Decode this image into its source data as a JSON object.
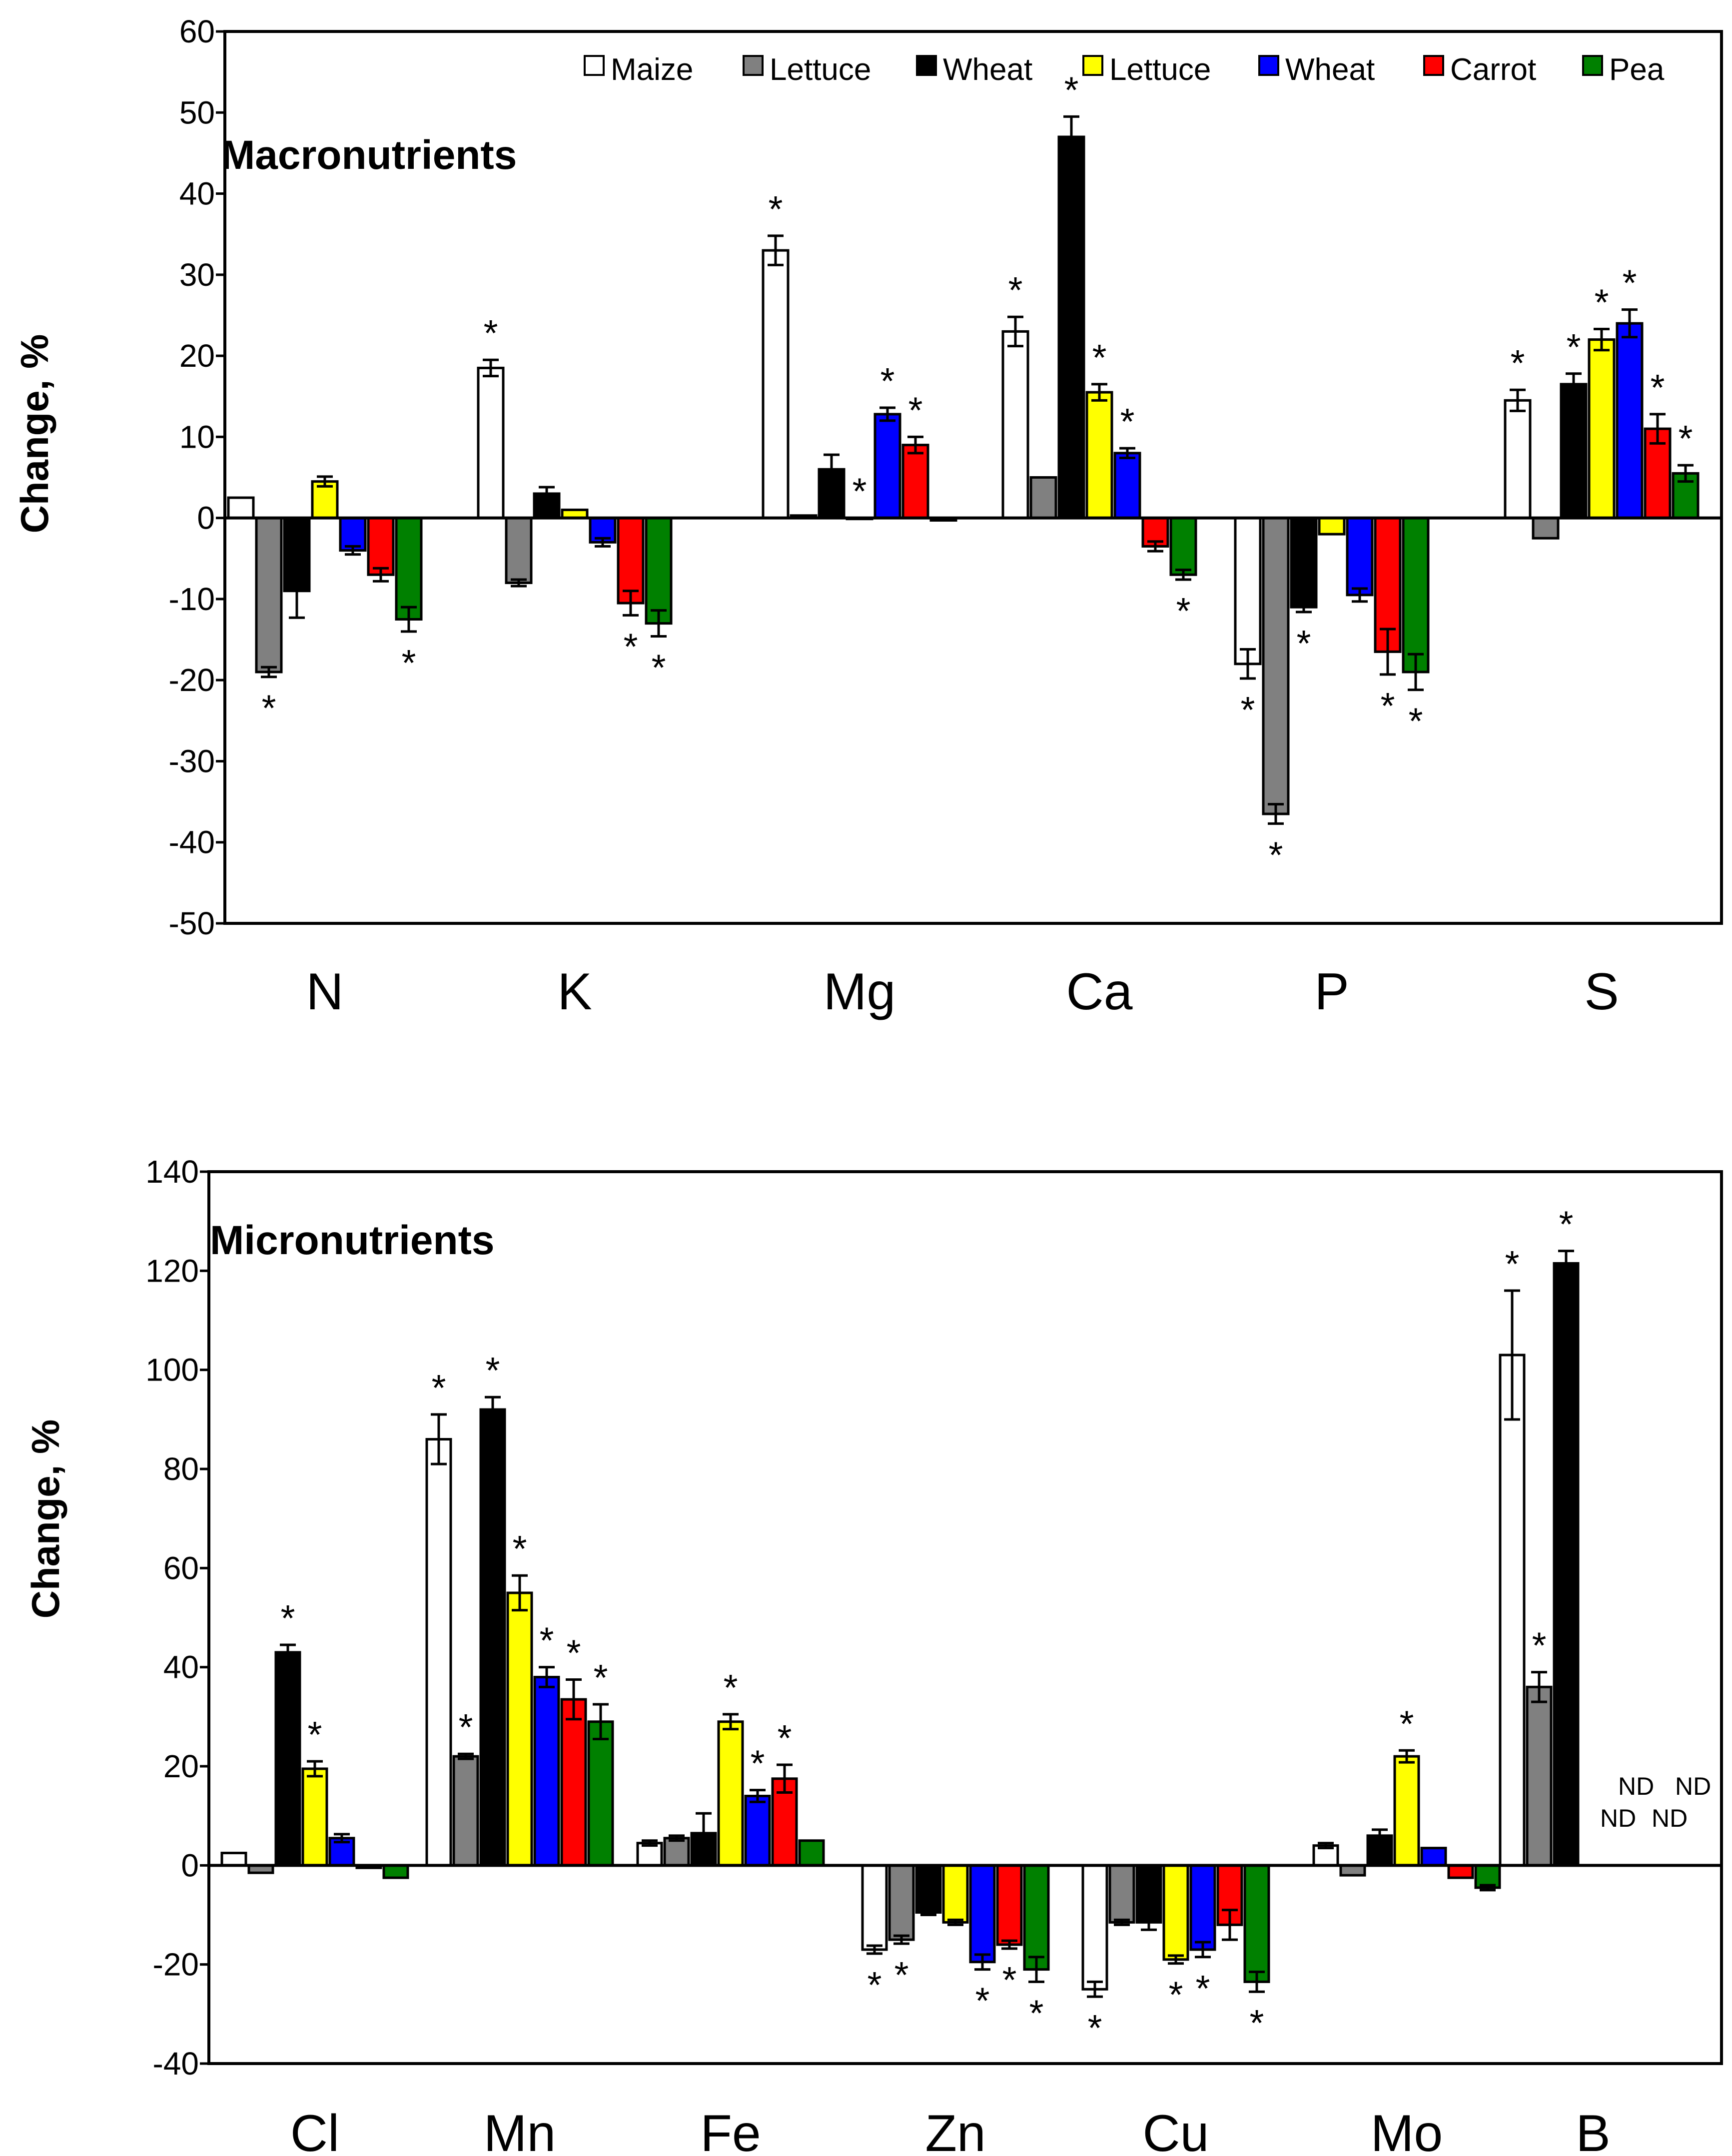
{
  "colors": {
    "Maize": "#ffffff",
    "Lettuce1": "#808080",
    "Wheat1": "#000000",
    "Lettuce2": "#ffff00",
    "Wheat2": "#0000ff",
    "Carrot": "#ff0000",
    "Pea": "#008000"
  },
  "legend": [
    "Maize",
    "Lettuce",
    "Wheat",
    "Lettuce",
    "Wheat",
    "Carrot",
    "Pea"
  ],
  "chart_data": [
    {
      "type": "bar",
      "title": "Macronutrients",
      "ylabel": "Change, %",
      "xlabel": "",
      "ylim": [
        -50,
        60
      ],
      "yticks": [
        -50,
        -40,
        -30,
        -20,
        -10,
        0,
        10,
        20,
        30,
        40,
        50,
        60
      ],
      "categories": [
        "N",
        "K",
        "Mg",
        "Ca",
        "P",
        "S"
      ],
      "series": [
        {
          "name": "Maize",
          "values": [
            2.5,
            18.5,
            33,
            23,
            -18,
            14.5
          ],
          "errors": [
            0,
            1,
            1.8,
            1.8,
            1.8,
            1.3
          ],
          "sig": [
            false,
            true,
            true,
            true,
            true,
            true
          ]
        },
        {
          "name": "Lettuce",
          "values": [
            -19,
            -8,
            0.3,
            5,
            -36.5,
            -2.5
          ],
          "errors": [
            0.6,
            0.4,
            0,
            0,
            1.2,
            0
          ],
          "sig": [
            true,
            false,
            false,
            false,
            true,
            false
          ]
        },
        {
          "name": "Wheat",
          "values": [
            -9,
            3,
            6,
            47,
            -11,
            16.5
          ],
          "errors": [
            3.3,
            0.8,
            1.8,
            2.5,
            0.6,
            1.3
          ],
          "sig": [
            false,
            false,
            false,
            true,
            true,
            true
          ]
        },
        {
          "name": "Lettuce",
          "values": [
            4.5,
            1,
            0,
            15.5,
            -2,
            22
          ],
          "errors": [
            0.6,
            0,
            0,
            1,
            0,
            1.3
          ],
          "sig": [
            false,
            false,
            true,
            true,
            false,
            true
          ]
        },
        {
          "name": "Wheat",
          "values": [
            -4,
            -3,
            12.8,
            8,
            -9.5,
            24
          ],
          "errors": [
            0.5,
            0.5,
            0.8,
            0.6,
            0.8,
            1.7
          ],
          "sig": [
            false,
            false,
            true,
            true,
            false,
            true
          ]
        },
        {
          "name": "Carrot",
          "values": [
            -7,
            -10.5,
            9,
            -3.5,
            -16.5,
            11
          ],
          "errors": [
            0.8,
            1.5,
            1,
            0.6,
            2.8,
            1.8
          ],
          "sig": [
            false,
            true,
            true,
            false,
            true,
            true
          ]
        },
        {
          "name": "Pea",
          "values": [
            -12.5,
            -13,
            -0.3,
            -7,
            -19,
            5.5
          ],
          "errors": [
            1.5,
            1.6,
            0,
            0.6,
            2.2,
            1
          ],
          "sig": [
            true,
            true,
            false,
            true,
            true,
            true
          ]
        }
      ]
    },
    {
      "type": "bar",
      "title": "Micronutrients",
      "ylabel": "Change, %",
      "xlabel": "",
      "ylim": [
        -40,
        140
      ],
      "yticks": [
        -40,
        -20,
        0,
        20,
        40,
        60,
        80,
        100,
        120,
        140
      ],
      "categories": [
        "Cl",
        "Mn",
        "Fe",
        "Zn",
        "Cu",
        "Mo",
        "B"
      ],
      "series": [
        {
          "name": "Maize",
          "values": [
            2.5,
            86,
            4.5,
            -17,
            -25,
            4,
            103
          ],
          "errors": [
            0,
            5,
            0.5,
            0.8,
            1.5,
            0.5,
            13
          ],
          "sig": [
            false,
            true,
            false,
            true,
            true,
            false,
            true
          ]
        },
        {
          "name": "Lettuce",
          "values": [
            -1.5,
            22,
            5.5,
            -15,
            -11.5,
            -2,
            36
          ],
          "errors": [
            0,
            0.5,
            0.5,
            0.8,
            0.5,
            0,
            3
          ],
          "sig": [
            false,
            true,
            false,
            true,
            false,
            false,
            true
          ]
        },
        {
          "name": "Wheat",
          "values": [
            43,
            92,
            6.5,
            -9.5,
            -11.5,
            6,
            121.5
          ],
          "errors": [
            1.5,
            2.5,
            4,
            0.5,
            1.5,
            1.2,
            2.5
          ],
          "sig": [
            true,
            true,
            false,
            false,
            false,
            false,
            true
          ]
        },
        {
          "name": "Lettuce",
          "values": [
            19.5,
            55,
            29,
            -11.5,
            -19,
            22,
            null
          ],
          "errors": [
            1.5,
            3.5,
            1.5,
            0.5,
            0.8,
            1.2,
            0
          ],
          "sig": [
            true,
            true,
            true,
            false,
            true,
            true,
            false
          ]
        },
        {
          "name": "Wheat",
          "values": [
            5.5,
            38,
            14,
            -19.5,
            -17,
            3.5,
            null
          ],
          "errors": [
            0.8,
            2,
            1.2,
            1.5,
            1.5,
            0,
            0
          ],
          "sig": [
            false,
            true,
            true,
            true,
            true,
            false,
            false
          ]
        },
        {
          "name": "Carrot",
          "values": [
            -0.5,
            33.5,
            17.5,
            -16,
            -12,
            -2.5,
            null
          ],
          "errors": [
            0,
            4,
            2.8,
            0.8,
            3,
            0,
            0
          ],
          "sig": [
            false,
            true,
            true,
            true,
            false,
            false,
            false
          ]
        },
        {
          "name": "Pea",
          "values": [
            -2.5,
            29,
            5,
            -21,
            -23.5,
            -4.5,
            null
          ],
          "errors": [
            0,
            3.5,
            0,
            2.5,
            2,
            0.5,
            0
          ],
          "sig": [
            false,
            true,
            false,
            true,
            true,
            false,
            false
          ]
        }
      ],
      "annotations": {
        "significance_marker": "*",
        "not_determined": [
          "ND",
          "ND",
          "ND",
          "ND"
        ]
      }
    }
  ]
}
